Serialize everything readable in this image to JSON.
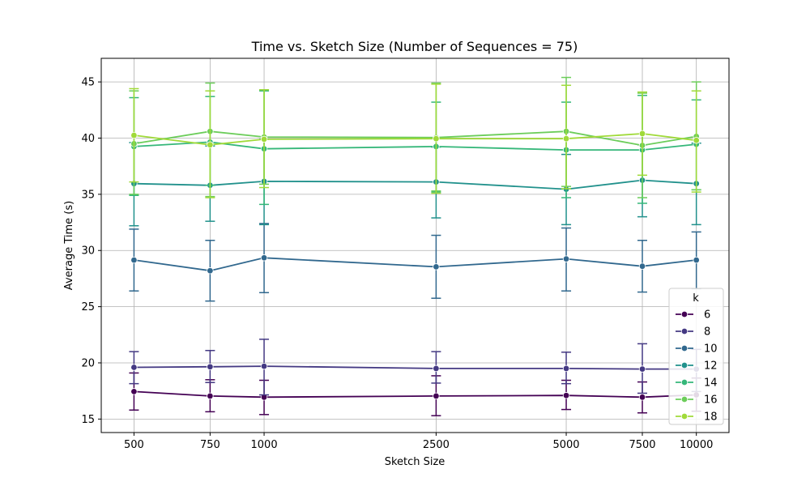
{
  "chart_data": {
    "type": "line",
    "title": "Time vs. Sketch Size (Number of Sequences = 75)",
    "xlabel": "Sketch Size",
    "ylabel": "Average Time (s)",
    "x": [
      500,
      750,
      1000,
      2500,
      5000,
      7500,
      10000
    ],
    "x_tick_labels": [
      "500",
      "750",
      "1000",
      "2500",
      "5000",
      "7500",
      "10000"
    ],
    "x_scale": "log",
    "xlim": [
      420,
      11900
    ],
    "ylim": [
      13.8,
      47.1
    ],
    "y_ticks": [
      15,
      20,
      25,
      30,
      35,
      40,
      45
    ],
    "grid": true,
    "legend": {
      "title": "k",
      "placement": "lower-right"
    },
    "series": [
      {
        "name": "6",
        "color": "#440154",
        "values": [
          17.45,
          17.05,
          16.95,
          17.05,
          17.1,
          16.95,
          17.15
        ],
        "err_low": [
          15.8,
          15.65,
          15.4,
          15.3,
          15.85,
          15.55,
          15.7
        ],
        "err_high": [
          19.1,
          18.5,
          18.45,
          18.85,
          18.45,
          18.3,
          18.65
        ]
      },
      {
        "name": "8",
        "color": "#443983",
        "values": [
          19.6,
          19.65,
          19.7,
          19.5,
          19.5,
          19.45,
          19.45
        ],
        "err_low": [
          18.15,
          18.25,
          17.15,
          18.2,
          18.15,
          17.3,
          17.45
        ],
        "err_high": [
          21.0,
          21.1,
          22.1,
          21.0,
          20.95,
          21.7,
          21.2
        ]
      },
      {
        "name": "10",
        "color": "#31688e",
        "values": [
          29.15,
          28.2,
          29.35,
          28.55,
          29.25,
          28.6,
          29.15
        ],
        "err_low": [
          26.4,
          25.5,
          26.25,
          25.75,
          26.4,
          26.3,
          26.6
        ],
        "err_high": [
          31.9,
          30.9,
          32.4,
          31.35,
          32.0,
          30.9,
          31.65
        ]
      },
      {
        "name": "12",
        "color": "#21918c",
        "values": [
          35.95,
          35.8,
          36.15,
          36.1,
          35.45,
          36.25,
          35.95
        ],
        "err_low": [
          32.2,
          32.6,
          32.3,
          32.9,
          32.3,
          33.0,
          32.3
        ],
        "err_high": [
          39.6,
          39.3,
          39.9,
          39.2,
          38.55,
          39.4,
          39.55
        ]
      },
      {
        "name": "14",
        "color": "#35b779",
        "values": [
          39.25,
          39.65,
          39.05,
          39.25,
          38.95,
          38.95,
          39.45
        ],
        "err_low": [
          34.9,
          35.8,
          34.1,
          35.2,
          34.7,
          34.2,
          35.4
        ],
        "err_high": [
          43.6,
          43.7,
          44.2,
          43.2,
          43.2,
          43.8,
          43.4
        ]
      },
      {
        "name": "16",
        "color": "#6ccd5a",
        "values": [
          39.5,
          40.6,
          40.1,
          40.05,
          40.6,
          39.35,
          40.15
        ],
        "err_low": [
          35.0,
          34.8,
          35.9,
          35.3,
          35.7,
          34.7,
          35.4
        ],
        "err_high": [
          44.2,
          44.9,
          44.3,
          44.9,
          45.4,
          44.0,
          45.0
        ]
      },
      {
        "name": "18",
        "color": "#a0da39",
        "values": [
          40.25,
          39.4,
          39.9,
          39.95,
          39.95,
          40.4,
          39.8
        ],
        "err_low": [
          36.1,
          34.7,
          35.6,
          35.1,
          35.5,
          36.7,
          35.2
        ],
        "err_high": [
          44.4,
          44.2,
          44.3,
          44.8,
          44.7,
          44.1,
          44.2
        ]
      }
    ]
  }
}
